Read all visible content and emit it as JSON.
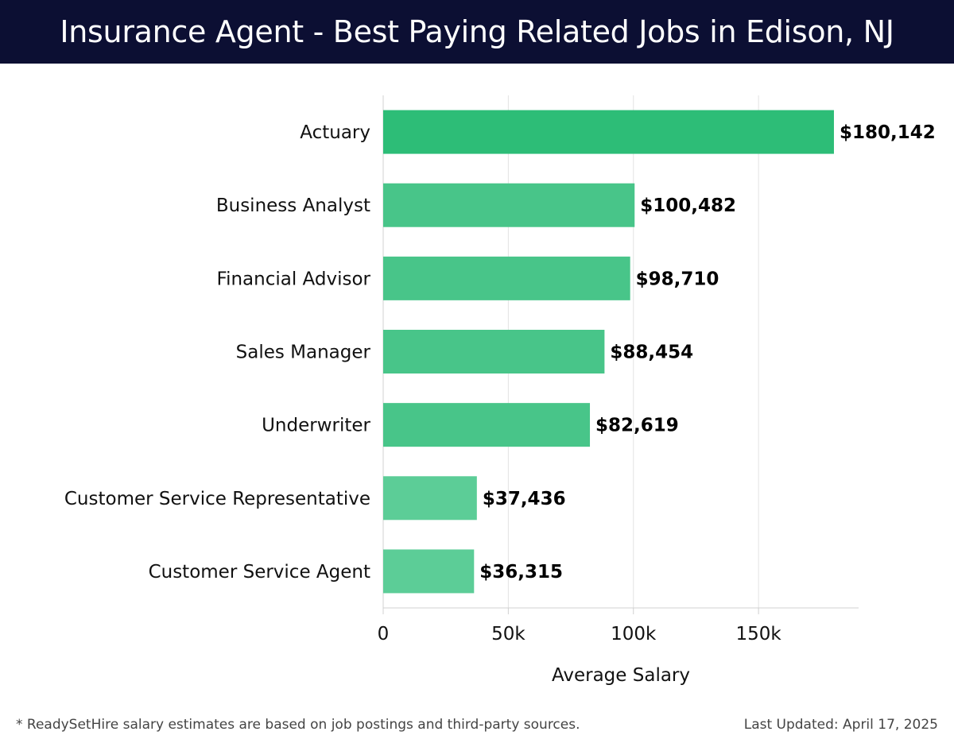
{
  "header": {
    "title": "Insurance Agent - Best Paying Related Jobs in Edison, NJ"
  },
  "chart_data": {
    "type": "bar",
    "orientation": "horizontal",
    "categories": [
      "Actuary",
      "Business Analyst",
      "Financial Advisor",
      "Sales Manager",
      "Underwriter",
      "Customer Service Representative",
      "Customer Service Agent"
    ],
    "values": [
      180142,
      100482,
      98710,
      88454,
      82619,
      37436,
      36315
    ],
    "value_labels": [
      "$180,142",
      "$100,482",
      "$98,710",
      "$88,454",
      "$82,619",
      "$37,436",
      "$36,315"
    ],
    "xlabel": "Average Salary",
    "ylabel": "",
    "xlim": [
      0,
      190000
    ],
    "xticks": [
      0,
      50000,
      100000,
      150000
    ],
    "xtick_labels": [
      "0",
      "50k",
      "100k",
      "150k"
    ],
    "grid": true,
    "colors": {
      "top_bar": "#2dbd77",
      "bar": "#48c589",
      "low_bar": "#5ccd97",
      "grid": "#e3e3e3",
      "axis": "#d0d0d0"
    }
  },
  "footer": {
    "note": "* ReadySetHire salary estimates are based on job postings and third-party sources.",
    "updated": "Last Updated: April 17, 2025"
  }
}
